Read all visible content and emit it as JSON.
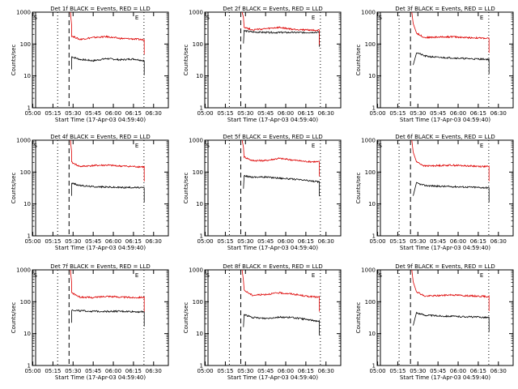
{
  "colors": {
    "events": "#000000",
    "lld": "#dd0000",
    "axes": "#000000",
    "background": "#ffffff"
  },
  "common": {
    "xlabel": "Start Time (17-Apr-03 04:59:40)",
    "ylabel": "Counts/sec",
    "y_ticks": [
      "1",
      "10",
      "100",
      "1000"
    ],
    "x_ticks": [
      "05:00",
      "05:15",
      "05:30",
      "05:45",
      "06:00",
      "06:15",
      "06:30"
    ],
    "s_marker": "S",
    "e_marker": "E"
  },
  "chart_data": [
    {
      "type": "line",
      "title": "Det 1f BLACK = Events, RED = LLD",
      "y_scale": "log",
      "ylim": [
        1,
        1000
      ],
      "xlim": [
        "04:59:40",
        "06:41"
      ],
      "x": [
        "05:29",
        "05:35",
        "05:45",
        "05:55",
        "06:05",
        "06:15",
        "06:23"
      ],
      "series": [
        {
          "name": "BLACK = Events",
          "color": "black",
          "values": [
            40,
            33,
            30,
            35,
            32,
            34,
            30
          ]
        },
        {
          "name": "RED = LLD",
          "color": "red",
          "values": [
            180,
            140,
            160,
            170,
            150,
            145,
            135
          ]
        }
      ]
    },
    {
      "type": "line",
      "title": "Det 2f BLACK = Events, RED = LLD",
      "y_scale": "log",
      "ylim": [
        1,
        1000
      ],
      "xlim": [
        "04:59:40",
        "06:41"
      ],
      "x": [
        "05:29",
        "05:35",
        "05:45",
        "05:55",
        "06:05",
        "06:15",
        "06:23"
      ],
      "series": [
        {
          "name": "BLACK = Events",
          "color": "black",
          "values": [
            260,
            240,
            230,
            230,
            230,
            230,
            235
          ]
        },
        {
          "name": "RED = LLD",
          "color": "red",
          "values": [
            340,
            280,
            300,
            330,
            290,
            280,
            270
          ]
        }
      ]
    },
    {
      "type": "line",
      "title": "Det 3f BLACK = Events, RED = LLD",
      "y_scale": "log",
      "ylim": [
        1,
        1000
      ],
      "xlim": [
        "04:59:40",
        "06:41"
      ],
      "x": [
        "05:29",
        "05:35",
        "05:45",
        "05:55",
        "06:05",
        "06:15",
        "06:23"
      ],
      "series": [
        {
          "name": "BLACK = Events",
          "color": "black",
          "values": [
            55,
            42,
            38,
            37,
            35,
            34,
            33
          ]
        },
        {
          "name": "RED = LLD",
          "color": "red",
          "values": [
            220,
            160,
            165,
            170,
            160,
            155,
            150
          ]
        }
      ]
    },
    {
      "type": "line",
      "title": "Det 4f BLACK = Events, RED = LLD",
      "y_scale": "log",
      "ylim": [
        1,
        1000
      ],
      "xlim": [
        "04:59:40",
        "06:41"
      ],
      "x": [
        "05:29",
        "05:35",
        "05:45",
        "05:55",
        "06:05",
        "06:15",
        "06:23"
      ],
      "series": [
        {
          "name": "BLACK = Events",
          "color": "black",
          "values": [
            45,
            38,
            35,
            34,
            33,
            33,
            32
          ]
        },
        {
          "name": "RED = LLD",
          "color": "red",
          "values": [
            200,
            150,
            160,
            165,
            155,
            150,
            145
          ]
        }
      ]
    },
    {
      "type": "line",
      "title": "Det 5f BLACK = Events, RED = LLD",
      "y_scale": "log",
      "ylim": [
        1,
        1000
      ],
      "xlim": [
        "04:59:40",
        "06:41"
      ],
      "x": [
        "05:29",
        "05:35",
        "05:45",
        "05:55",
        "06:05",
        "06:15",
        "06:23"
      ],
      "series": [
        {
          "name": "BLACK = Events",
          "color": "black",
          "values": [
            75,
            70,
            70,
            65,
            60,
            55,
            50
          ]
        },
        {
          "name": "RED = LLD",
          "color": "red",
          "values": [
            300,
            230,
            230,
            270,
            240,
            215,
            210
          ]
        }
      ]
    },
    {
      "type": "line",
      "title": "Det 6f BLACK = Events, RED = LLD",
      "y_scale": "log",
      "ylim": [
        1,
        1000
      ],
      "xlim": [
        "04:59:40",
        "06:41"
      ],
      "x": [
        "05:29",
        "05:35",
        "05:45",
        "05:55",
        "06:05",
        "06:15",
        "06:23"
      ],
      "series": [
        {
          "name": "BLACK = Events",
          "color": "black",
          "values": [
            45,
            38,
            36,
            35,
            34,
            33,
            32
          ]
        },
        {
          "name": "RED = LLD",
          "color": "red",
          "values": [
            210,
            155,
            160,
            165,
            158,
            152,
            148
          ]
        }
      ]
    },
    {
      "type": "line",
      "title": "Det 7f BLACK = Events, RED = LLD",
      "y_scale": "log",
      "ylim": [
        1,
        1000
      ],
      "xlim": [
        "04:59:40",
        "06:41"
      ],
      "x": [
        "05:29",
        "05:35",
        "05:45",
        "05:55",
        "06:05",
        "06:15",
        "06:23"
      ],
      "series": [
        {
          "name": "BLACK = Events",
          "color": "black",
          "values": [
            55,
            52,
            50,
            50,
            50,
            49,
            48
          ]
        },
        {
          "name": "RED = LLD",
          "color": "red",
          "values": [
            190,
            140,
            135,
            150,
            140,
            135,
            140
          ]
        }
      ]
    },
    {
      "type": "line",
      "title": "Det 8f BLACK = Events, RED = LLD",
      "y_scale": "log",
      "ylim": [
        1,
        1000
      ],
      "xlim": [
        "04:59:40",
        "06:41"
      ],
      "x": [
        "05:29",
        "05:35",
        "05:45",
        "05:55",
        "06:05",
        "06:15",
        "06:23"
      ],
      "series": [
        {
          "name": "BLACK = Events",
          "color": "black",
          "values": [
            40,
            32,
            30,
            33,
            32,
            28,
            25
          ]
        },
        {
          "name": "RED = LLD",
          "color": "red",
          "values": [
            230,
            160,
            170,
            190,
            175,
            150,
            140
          ]
        }
      ]
    },
    {
      "type": "line",
      "title": "Det 9f BLACK = Events, RED = LLD",
      "y_scale": "log",
      "ylim": [
        1,
        1000
      ],
      "xlim": [
        "04:59:40",
        "06:41"
      ],
      "x": [
        "05:29",
        "05:35",
        "05:45",
        "05:55",
        "06:05",
        "06:15",
        "06:23"
      ],
      "series": [
        {
          "name": "BLACK = Events",
          "color": "black",
          "values": [
            45,
            38,
            36,
            35,
            34,
            33,
            32
          ]
        },
        {
          "name": "RED = LLD",
          "color": "red",
          "values": [
            210,
            150,
            155,
            165,
            155,
            150,
            145
          ]
        }
      ]
    }
  ]
}
